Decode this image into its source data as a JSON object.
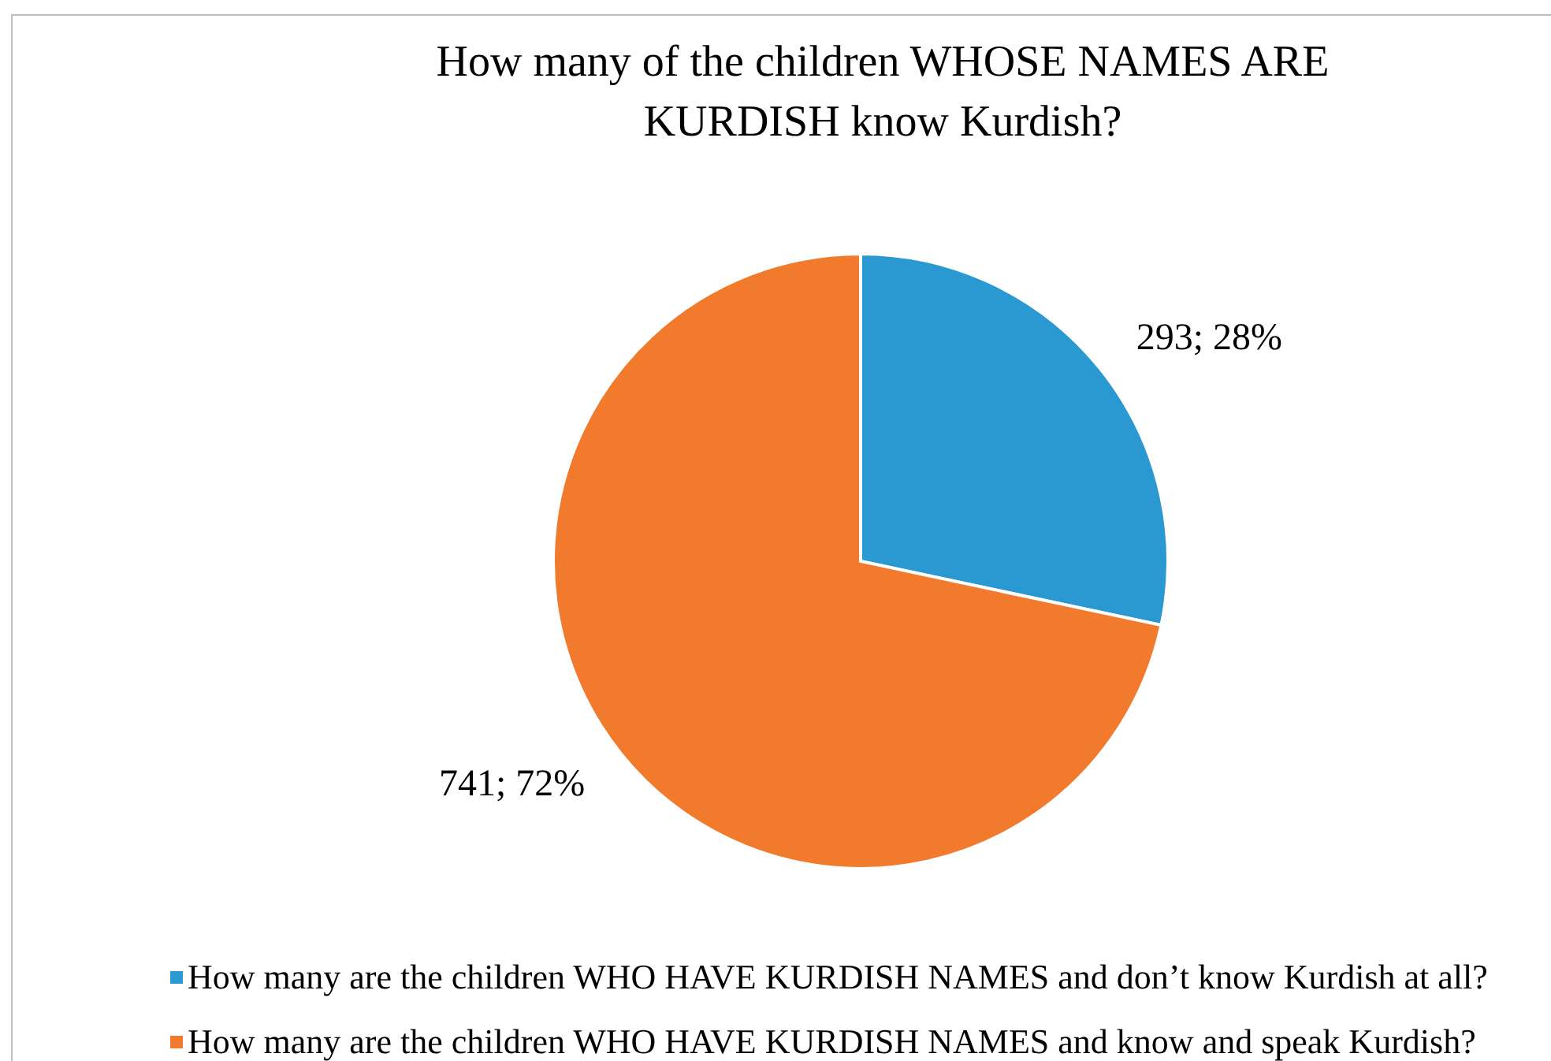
{
  "chart_data": {
    "type": "pie",
    "title": "How many of the children WHOSE NAMES ARE KURDISH know Kurdish?",
    "categories": [
      "How many are the children WHO HAVE KURDISH NAMES and don’t know Kurdish at all?",
      "How many are the children WHO HAVE KURDISH NAMES and know and speak Kurdish?"
    ],
    "values": [
      293,
      741
    ],
    "colors": [
      "#2a98d1",
      "#f27a2c"
    ],
    "value_labels": [
      "293; 28%",
      "741; 72%"
    ],
    "legend": "bottom"
  }
}
